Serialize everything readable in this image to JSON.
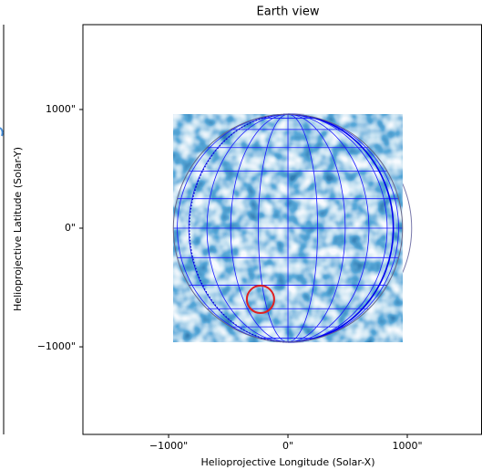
{
  "chart_data": {
    "type": "map",
    "title": "Earth view",
    "x_label": "Helioprojective Longitude (Solar-X)",
    "y_label": "Helioprojective Latitude (Solar-Y)",
    "xlim": [
      -1718,
      1626
    ],
    "ylim": [
      -1738,
      1715
    ],
    "xticks": [
      {
        "value": -1000,
        "label": "−1000\""
      },
      {
        "value": 0,
        "label": "0\""
      },
      {
        "value": 1000,
        "label": "1000\""
      }
    ],
    "yticks": [
      {
        "value": -1000,
        "label": "−1000\""
      },
      {
        "value": 0,
        "label": "0\""
      },
      {
        "value": 1000,
        "label": "1000\""
      }
    ],
    "disk": {
      "x": 0,
      "y": 0,
      "radius": 960
    },
    "highlight": {
      "x": -230,
      "y": -600,
      "color": "#e02020"
    }
  }
}
